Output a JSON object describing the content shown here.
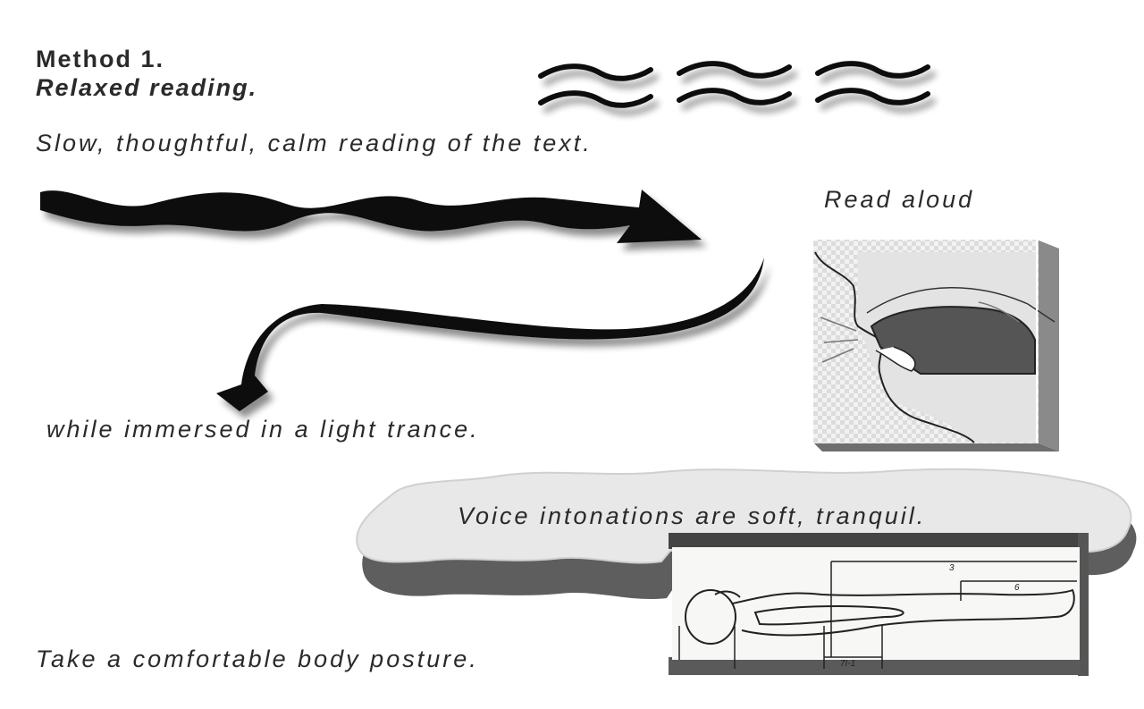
{
  "heading": {
    "method": "Method 1.",
    "subtitle": "Relaxed reading."
  },
  "texts": {
    "slow_reading": "Slow, thoughtful, calm reading of the text.",
    "read_aloud": "Read aloud",
    "trance": "while immersed in a light trance.",
    "voice": "Voice intonations are soft, tranquil.",
    "posture": "Take a comfortable body posture."
  },
  "illustrations": {
    "mouth_diagram_figure_label": "",
    "posture_diagram_labels": [
      "3",
      "6",
      "7I-1"
    ]
  },
  "colors": {
    "ink": "#111111",
    "cloud": "#e6e6e6",
    "cloud_shadow": "#6a6a6a",
    "panel": "#dcdcdc",
    "panel_shadow": "#555555"
  }
}
